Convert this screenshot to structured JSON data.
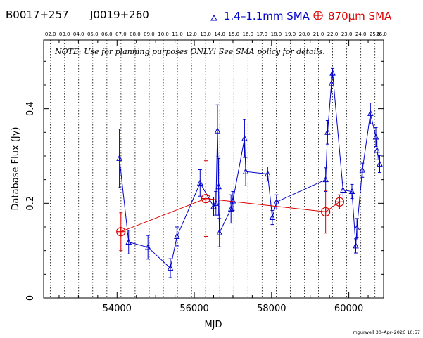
{
  "header": {
    "source_name": "B0017+257",
    "alt_name": "J0019+260",
    "legend_blue": "1.4–1.1mm SMA",
    "legend_red": "870µm SMA",
    "note": "NOTE: Use for planning purposes ONLY!  See SMA policy for details.",
    "credit": "mgurwell 30–Apr–2026 10:57"
  },
  "chart_data": {
    "type": "scatter",
    "xlabel": "MJD",
    "ylabel": "Database Flux (Jy)",
    "xlim": [
      52100,
      60900
    ],
    "ylim": [
      0,
      0.545
    ],
    "x_ticks": [
      54000,
      56000,
      58000,
      60000
    ],
    "x_tick_labels": [
      "54000",
      "56000",
      "58000",
      "60000"
    ],
    "y_ticks": [
      0,
      0.2,
      0.4
    ],
    "y_tick_labels": [
      "0",
      "0.2",
      "0.4"
    ],
    "top_axis_labels": [
      "02.0",
      "03.0",
      "04.0",
      "05.0",
      "06.0",
      "07.0",
      "08.0",
      "09.0",
      "10.0",
      "11.0",
      "12.0",
      "13.0",
      "14.0",
      "15.0",
      "16.0",
      "17.0",
      "18.0",
      "19.0",
      "20.0",
      "21.0",
      "22.0",
      "23.0",
      "24.0",
      "25.0",
      "26.0"
    ],
    "year_lines_mjd": [
      52276,
      52641,
      53006,
      53371,
      53737,
      54102,
      54467,
      54832,
      55198,
      55563,
      55928,
      56293,
      56659,
      57024,
      57389,
      57754,
      58120,
      58485,
      58850,
      59215,
      59581,
      59946,
      60311,
      60676
    ],
    "series": [
      {
        "name": "1.4–1.1mm SMA",
        "color": "#0000cc",
        "marker": "triangle",
        "points": [
          {
            "x": 54060,
            "y": 0.295,
            "err": 0.062
          },
          {
            "x": 54300,
            "y": 0.118,
            "err": 0.025
          },
          {
            "x": 54800,
            "y": 0.107,
            "err": 0.025
          },
          {
            "x": 55380,
            "y": 0.063,
            "err": 0.02
          },
          {
            "x": 55550,
            "y": 0.13,
            "err": 0.02
          },
          {
            "x": 56150,
            "y": 0.243,
            "err": 0.028
          },
          {
            "x": 56500,
            "y": 0.193,
            "err": 0.02
          },
          {
            "x": 56560,
            "y": 0.2,
            "err": 0.025
          },
          {
            "x": 56600,
            "y": 0.353,
            "err": 0.055
          },
          {
            "x": 56630,
            "y": 0.235,
            "err": 0.06
          },
          {
            "x": 56650,
            "y": 0.138,
            "err": 0.03
          },
          {
            "x": 56950,
            "y": 0.188,
            "err": 0.03
          },
          {
            "x": 57000,
            "y": 0.205,
            "err": 0.02
          },
          {
            "x": 57300,
            "y": 0.337,
            "err": 0.04
          },
          {
            "x": 57330,
            "y": 0.267,
            "err": 0.03
          },
          {
            "x": 57900,
            "y": 0.262,
            "err": 0.015
          },
          {
            "x": 58020,
            "y": 0.17,
            "err": 0.015
          },
          {
            "x": 58130,
            "y": 0.203,
            "err": 0.015
          },
          {
            "x": 59400,
            "y": 0.25,
            "err": 0.025
          },
          {
            "x": 59450,
            "y": 0.35,
            "err": 0.025
          },
          {
            "x": 59550,
            "y": 0.453,
            "err": 0.02
          },
          {
            "x": 59580,
            "y": 0.475,
            "err": 0.01
          },
          {
            "x": 59850,
            "y": 0.228,
            "err": 0.015
          },
          {
            "x": 60080,
            "y": 0.225,
            "err": 0.015
          },
          {
            "x": 60180,
            "y": 0.11,
            "err": 0.015
          },
          {
            "x": 60210,
            "y": 0.148,
            "err": 0.02
          },
          {
            "x": 60350,
            "y": 0.27,
            "err": 0.015
          },
          {
            "x": 60560,
            "y": 0.39,
            "err": 0.022
          },
          {
            "x": 60700,
            "y": 0.34,
            "err": 0.02
          },
          {
            "x": 60730,
            "y": 0.312,
            "err": 0.02
          },
          {
            "x": 60800,
            "y": 0.283,
            "err": 0.018
          }
        ]
      },
      {
        "name": "870µm SMA",
        "color": "#dd0000",
        "marker": "circle-cross",
        "points": [
          {
            "x": 54100,
            "y": 0.14,
            "err": 0.04
          },
          {
            "x": 56300,
            "y": 0.21,
            "err": 0.08
          },
          {
            "x": 59400,
            "y": 0.182,
            "err": 0.045
          },
          {
            "x": 59760,
            "y": 0.203,
            "err": 0.015
          }
        ]
      }
    ]
  }
}
